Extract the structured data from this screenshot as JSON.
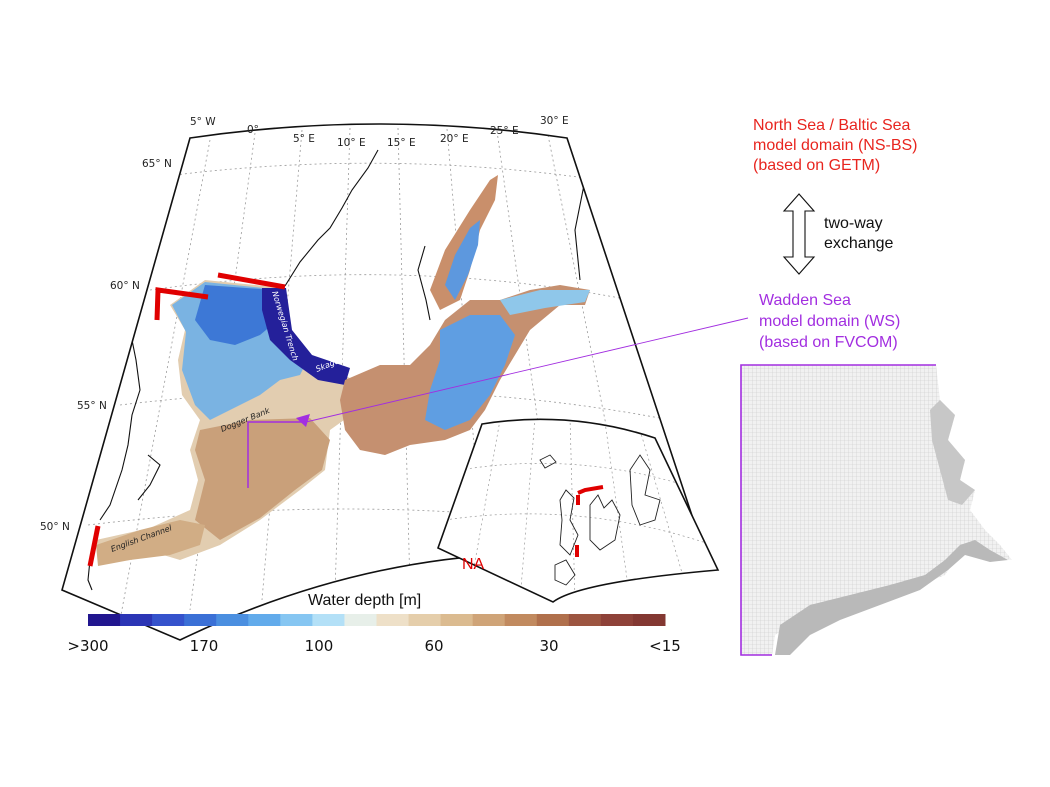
{
  "map": {
    "lon_labels": [
      "5° W",
      "0°",
      "5° E",
      "10° E",
      "15° E",
      "20° E",
      "25° E",
      "30° E"
    ],
    "lat_labels": [
      "65° N",
      "60° N",
      "55° N",
      "50° N"
    ],
    "features": {
      "norwegian_trench": "Norwegian Trench",
      "skagerrak": "Skagerrak",
      "dogger_bank": "Dogger Bank",
      "english_channel": "English Channel"
    },
    "inset_label": "NA"
  },
  "legend": {
    "title": "Water depth [m]",
    "ticks": [
      ">300",
      "170",
      "100",
      "60",
      "30",
      "<15"
    ],
    "colors": [
      "#21168f",
      "#2b35b5",
      "#3553cc",
      "#3b70d6",
      "#4b8fe0",
      "#62abeb",
      "#86c6f2",
      "#b3e0f7",
      "#e7efe9",
      "#eee0c8",
      "#e5ceab",
      "#dbbb90",
      "#cfa478",
      "#c18a5f",
      "#b0704c",
      "#9c5541",
      "#8e4239",
      "#833832"
    ]
  },
  "annotations": {
    "nsbs_lines": [
      "North Sea / Baltic Sea",
      "model domain (NS-BS)",
      "(based on GETM)"
    ],
    "exchange_lines": [
      "two-way",
      "exchange"
    ],
    "ws_lines": [
      "Wadden Sea",
      "model domain (WS)",
      "(based on FVCOM)"
    ]
  },
  "colors": {
    "nsbs": "#e8251f",
    "ws": "#a22ee0",
    "boundary": "#e00000"
  }
}
